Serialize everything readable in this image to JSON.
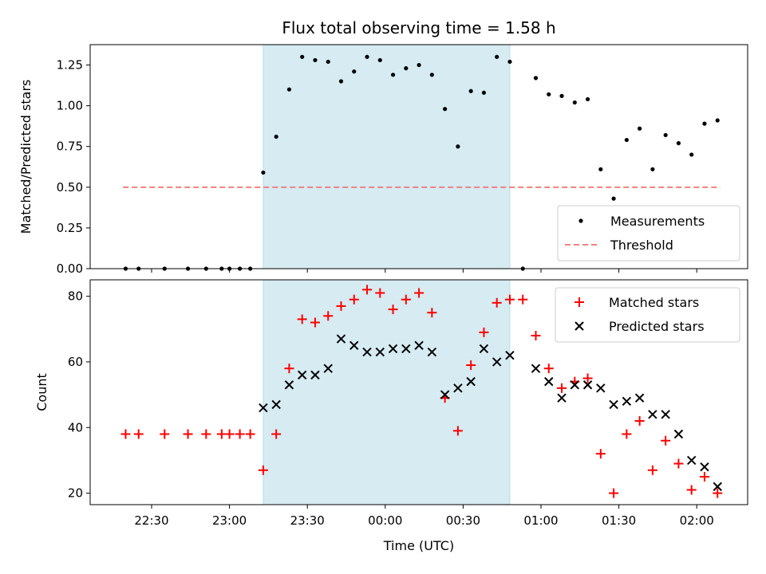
{
  "chart_data": {
    "type": "scatter",
    "title": "Flux total observing time = 1.58 h",
    "xlabel": "Time (UTC)",
    "x_ticks": [
      "22:30",
      "23:00",
      "23:30",
      "00:00",
      "00:30",
      "01:00",
      "01:30",
      "02:00"
    ],
    "shaded_interval": [
      "23:13",
      "00:48"
    ],
    "shade_color": "#add8e6",
    "top": {
      "ylabel": "Matched/Predicted stars",
      "ylim": [
        0,
        1.375
      ],
      "yticks": [
        "0.00",
        "0.25",
        "0.50",
        "0.75",
        "1.00",
        "1.25"
      ],
      "legend": [
        "Measurements",
        "Threshold"
      ],
      "threshold": {
        "value": 0.5,
        "x": [
          "22:19",
          "02:09"
        ],
        "color": "#f08080"
      },
      "series": [
        {
          "name": "Measurements",
          "marker": "dot",
          "color": "#000000",
          "x": [
            "22:20",
            "22:25",
            "22:35",
            "22:44",
            "22:51",
            "22:57",
            "23:00",
            "23:04",
            "23:08",
            "23:13",
            "23:18",
            "23:23",
            "23:28",
            "23:33",
            "23:38",
            "23:43",
            "23:48",
            "23:53",
            "23:58",
            "00:03",
            "00:08",
            "00:13",
            "00:18",
            "00:23",
            "00:28",
            "00:33",
            "00:38",
            "00:43",
            "00:48",
            "00:53",
            "00:58",
            "01:03",
            "01:08",
            "01:13",
            "01:18",
            "01:23",
            "01:28",
            "01:33",
            "01:38",
            "01:43",
            "01:48",
            "01:53",
            "01:58",
            "02:03",
            "02:08"
          ],
          "y": [
            0,
            0,
            0,
            0,
            0,
            0,
            0,
            0,
            0,
            0.59,
            0.81,
            1.1,
            1.3,
            1.28,
            1.27,
            1.15,
            1.21,
            1.3,
            1.28,
            1.19,
            1.23,
            1.25,
            1.19,
            0.98,
            0.75,
            1.09,
            1.08,
            1.3,
            1.27,
            0,
            1.17,
            1.07,
            1.06,
            1.02,
            1.04,
            0.61,
            0.43,
            0.79,
            0.86,
            0.61,
            0.82,
            0.77,
            0.7,
            0.89,
            0.91
          ]
        }
      ]
    },
    "bottom": {
      "ylabel": "Count",
      "ylim": [
        16.5,
        85
      ],
      "yticks": [
        "20",
        "40",
        "60",
        "80"
      ],
      "legend": [
        "Matched stars",
        "Predicted stars"
      ],
      "series": [
        {
          "name": "Matched stars",
          "marker": "plus",
          "color": "#ff0000",
          "x": [
            "22:20",
            "22:25",
            "22:35",
            "22:44",
            "22:51",
            "22:57",
            "23:00",
            "23:04",
            "23:08",
            "23:13",
            "23:18",
            "23:23",
            "23:28",
            "23:33",
            "23:38",
            "23:43",
            "23:48",
            "23:53",
            "23:58",
            "00:03",
            "00:08",
            "00:13",
            "00:18",
            "00:23",
            "00:28",
            "00:33",
            "00:38",
            "00:43",
            "00:48",
            "00:53",
            "00:58",
            "01:03",
            "01:08",
            "01:13",
            "01:18",
            "01:23",
            "01:28",
            "01:33",
            "01:38",
            "01:43",
            "01:48",
            "01:53",
            "01:58",
            "02:03",
            "02:08"
          ],
          "y": [
            38,
            38,
            38,
            38,
            38,
            38,
            38,
            38,
            38,
            27,
            38,
            58,
            73,
            72,
            74,
            77,
            79,
            82,
            81,
            76,
            79,
            81,
            75,
            49,
            39,
            59,
            69,
            78,
            79,
            79,
            68,
            58,
            52,
            54,
            55,
            32,
            20,
            38,
            42,
            27,
            36,
            29,
            21,
            25,
            20
          ]
        },
        {
          "name": "Predicted stars",
          "marker": "x",
          "color": "#000000",
          "x": [
            "23:13",
            "23:18",
            "23:23",
            "23:28",
            "23:33",
            "23:38",
            "23:43",
            "23:48",
            "23:53",
            "23:58",
            "00:03",
            "00:08",
            "00:13",
            "00:18",
            "00:23",
            "00:28",
            "00:33",
            "00:38",
            "00:43",
            "00:48",
            "00:58",
            "01:03",
            "01:08",
            "01:13",
            "01:18",
            "01:23",
            "01:28",
            "01:33",
            "01:38",
            "01:43",
            "01:48",
            "01:53",
            "01:58",
            "02:03",
            "02:08"
          ],
          "y": [
            46,
            47,
            53,
            56,
            56,
            58,
            67,
            65,
            63,
            63,
            64,
            64,
            65,
            63,
            50,
            52,
            54,
            64,
            60,
            62,
            58,
            54,
            49,
            53,
            53,
            52,
            47,
            48,
            49,
            44,
            44,
            38,
            30,
            28,
            22
          ]
        }
      ]
    }
  }
}
